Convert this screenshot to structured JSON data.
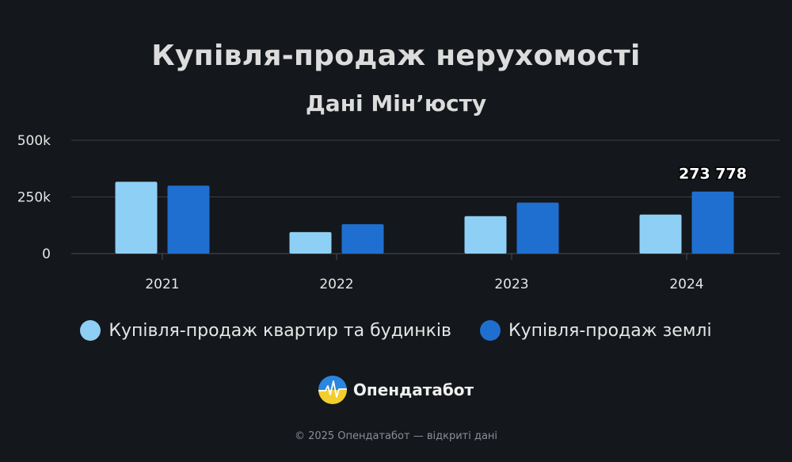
{
  "chart_data": {
    "type": "bar",
    "title": "Купівля-продаж нерухомості",
    "subtitle": "Дані Мін’юсту",
    "categories": [
      "2021",
      "2022",
      "2023",
      "2024"
    ],
    "series": [
      {
        "name": "Купівля-продаж квартир та будинків",
        "values": [
          317000,
          95000,
          165000,
          172000
        ],
        "color": "#8ecff5"
      },
      {
        "name": "Купівля-продаж землі",
        "values": [
          300000,
          130000,
          225000,
          273778
        ],
        "color": "#1f6fd0"
      }
    ],
    "y_ticks": [
      "0",
      "250k",
      "500k"
    ],
    "y_tick_values": [
      0,
      250000,
      500000
    ],
    "ylim": [
      0,
      500000
    ],
    "grid": true,
    "legend_placement": "bottom",
    "annotation": {
      "text": "273 778",
      "series": 1,
      "category": "2024"
    }
  },
  "brand": {
    "name": "Опендатабот"
  },
  "footer": {
    "text": "© 2025 Опендатабот — відкриті дані"
  },
  "colors": {
    "background": "#14171b",
    "text": "#dcdcdc",
    "grid": "#3a3f45"
  }
}
